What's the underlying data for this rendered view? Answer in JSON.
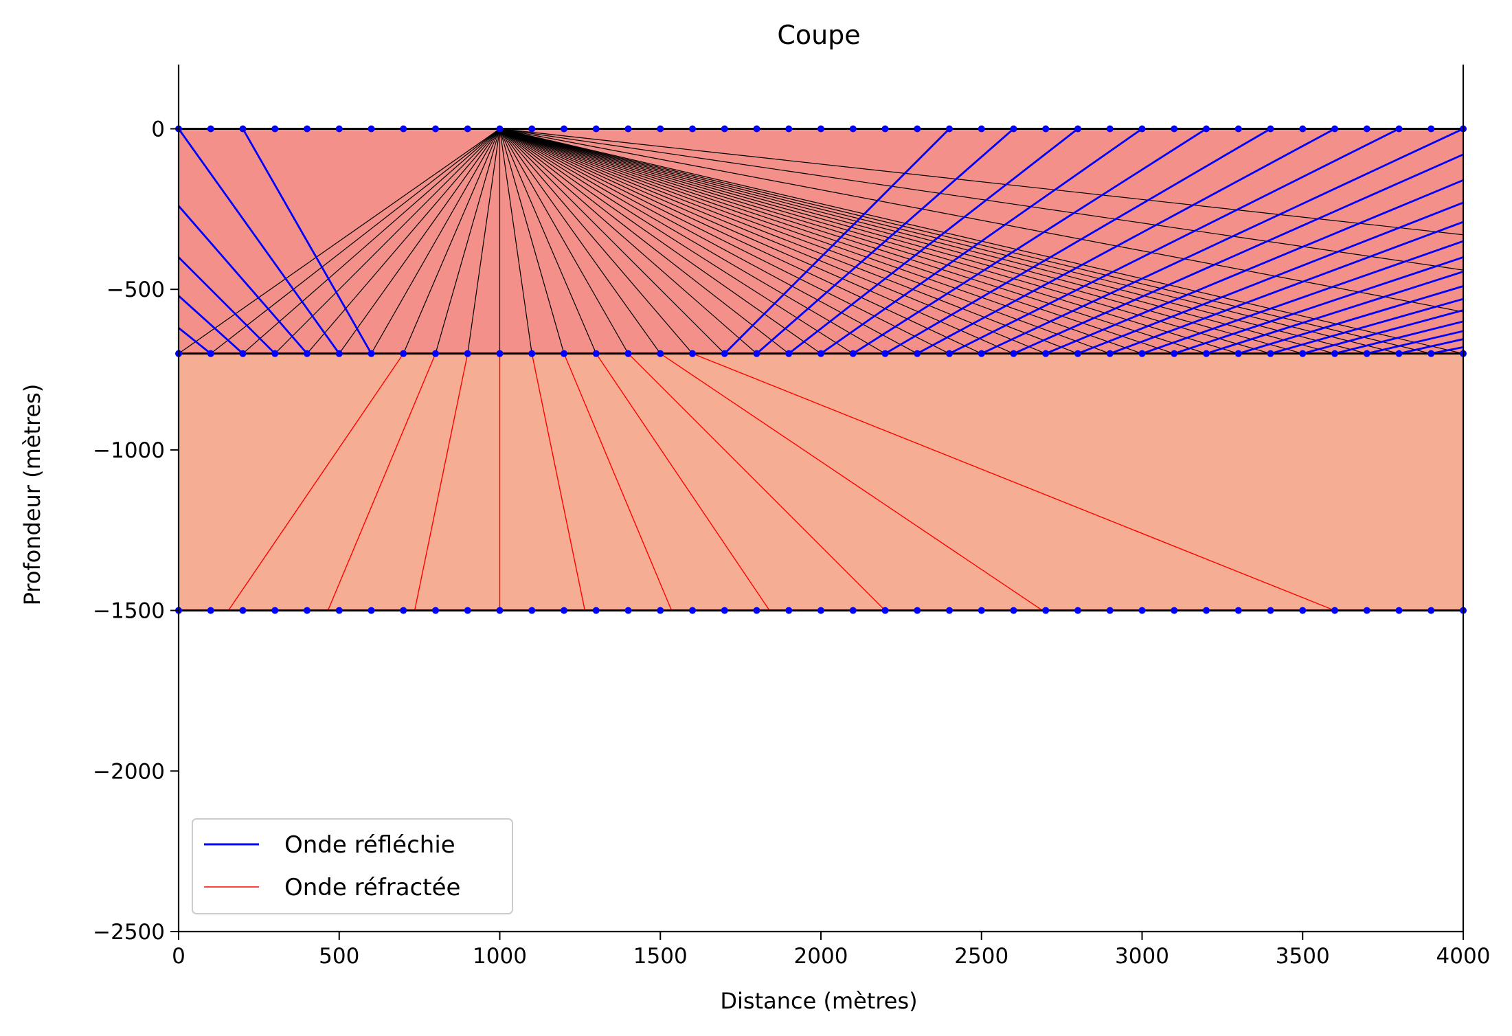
{
  "chart_data": {
    "type": "line",
    "title": "Coupe",
    "xlabel": "Distance (mètres)",
    "ylabel": "Profondeur (mètres)",
    "xlim": [
      0,
      4000
    ],
    "ylim": [
      -2500,
      200
    ],
    "x_ticks": [
      0,
      500,
      1000,
      1500,
      2000,
      2500,
      3000,
      3500,
      4000
    ],
    "y_ticks": [
      0,
      -500,
      -1000,
      -1500,
      -2000,
      -2500
    ],
    "x_tick_labels": [
      "0",
      "500",
      "1000",
      "1500",
      "2000",
      "2500",
      "3000",
      "3500",
      "4000"
    ],
    "y_tick_labels": [
      "0",
      "−500",
      "−1000",
      "−1500",
      "−2000",
      "−2500"
    ],
    "grid": false,
    "legend_position": "lower-left",
    "source": {
      "x": 1000,
      "y": 0
    },
    "layers": [
      {
        "top": 0,
        "bottom": -700,
        "color": "#f4908a"
      },
      {
        "top": -700,
        "bottom": -1500,
        "color": "#f5ae94"
      }
    ],
    "interfaces": [
      0,
      -700,
      -1500
    ],
    "receiver_spacing": 100,
    "receiver_color": "#0000ff",
    "incident_ray_color": "#000000",
    "incident_ray_ends": [
      0,
      100,
      200,
      300,
      400,
      500,
      600,
      700,
      800,
      900,
      1000,
      1100,
      1200,
      1300,
      1400,
      1500,
      1600,
      1700,
      1800,
      1900,
      2000,
      2100,
      2200,
      2300,
      2400,
      2500,
      2600,
      2700,
      2800,
      2900,
      3000,
      3100,
      3200,
      3300,
      3400,
      3500,
      3600,
      3700,
      3800,
      3900,
      4000,
      [
        4000,
        -570
      ],
      [
        4000,
        -440
      ],
      [
        4000,
        -330
      ]
    ],
    "reflected_rays": [
      [
        [
          100,
          -700
        ],
        [
          0,
          -620
        ]
      ],
      [
        [
          200,
          -700
        ],
        [
          0,
          -520
        ]
      ],
      [
        [
          300,
          -700
        ],
        [
          0,
          -400
        ]
      ],
      [
        [
          400,
          -700
        ],
        [
          0,
          -240
        ]
      ],
      [
        [
          500,
          -700
        ],
        [
          0,
          0
        ]
      ],
      [
        [
          600,
          -700
        ],
        [
          200,
          0
        ]
      ],
      [
        [
          1700,
          -700
        ],
        [
          2400,
          0
        ]
      ],
      [
        [
          1800,
          -700
        ],
        [
          2600,
          0
        ]
      ],
      [
        [
          1900,
          -700
        ],
        [
          2800,
          0
        ]
      ],
      [
        [
          2000,
          -700
        ],
        [
          3000,
          0
        ]
      ],
      [
        [
          2100,
          -700
        ],
        [
          3200,
          0
        ]
      ],
      [
        [
          2200,
          -700
        ],
        [
          3400,
          0
        ]
      ],
      [
        [
          2300,
          -700
        ],
        [
          3600,
          0
        ]
      ],
      [
        [
          2400,
          -700
        ],
        [
          3800,
          0
        ]
      ],
      [
        [
          2500,
          -700
        ],
        [
          4000,
          0
        ]
      ],
      [
        [
          2600,
          -700
        ],
        [
          4000,
          -80
        ]
      ],
      [
        [
          2700,
          -700
        ],
        [
          4000,
          -160
        ]
      ],
      [
        [
          2800,
          -700
        ],
        [
          4000,
          -230
        ]
      ],
      [
        [
          2900,
          -700
        ],
        [
          4000,
          -290
        ]
      ],
      [
        [
          3000,
          -700
        ],
        [
          4000,
          -350
        ]
      ],
      [
        [
          3100,
          -700
        ],
        [
          4000,
          -400
        ]
      ],
      [
        [
          3200,
          -700
        ],
        [
          4000,
          -445
        ]
      ],
      [
        [
          3300,
          -700
        ],
        [
          4000,
          -490
        ]
      ],
      [
        [
          3400,
          -700
        ],
        [
          4000,
          -530
        ]
      ],
      [
        [
          3500,
          -700
        ],
        [
          4000,
          -565
        ]
      ],
      [
        [
          3600,
          -700
        ],
        [
          4000,
          -600
        ]
      ],
      [
        [
          3700,
          -700
        ],
        [
          4000,
          -630
        ]
      ],
      [
        [
          3800,
          -700
        ],
        [
          4000,
          -655
        ]
      ],
      [
        [
          3900,
          -700
        ],
        [
          4000,
          -680
        ]
      ]
    ],
    "refracted_rays": [
      [
        [
          700,
          -700
        ],
        [
          155,
          -1500
        ]
      ],
      [
        [
          800,
          -700
        ],
        [
          465,
          -1500
        ]
      ],
      [
        [
          900,
          -700
        ],
        [
          735,
          -1500
        ]
      ],
      [
        [
          1000,
          -700
        ],
        [
          1000,
          -1500
        ]
      ],
      [
        [
          1100,
          -700
        ],
        [
          1265,
          -1500
        ]
      ],
      [
        [
          1200,
          -700
        ],
        [
          1535,
          -1500
        ]
      ],
      [
        [
          1300,
          -700
        ],
        [
          1840,
          -1500
        ]
      ],
      [
        [
          1400,
          -700
        ],
        [
          2200,
          -1500
        ]
      ],
      [
        [
          1500,
          -700
        ],
        [
          2690,
          -1500
        ]
      ],
      [
        [
          1600,
          -700
        ],
        [
          3600,
          -1500
        ]
      ]
    ],
    "series": [
      {
        "name": "Onde réfléchie",
        "color": "#0000ff"
      },
      {
        "name": "Onde réfractée",
        "color": "#ff0000"
      }
    ]
  }
}
